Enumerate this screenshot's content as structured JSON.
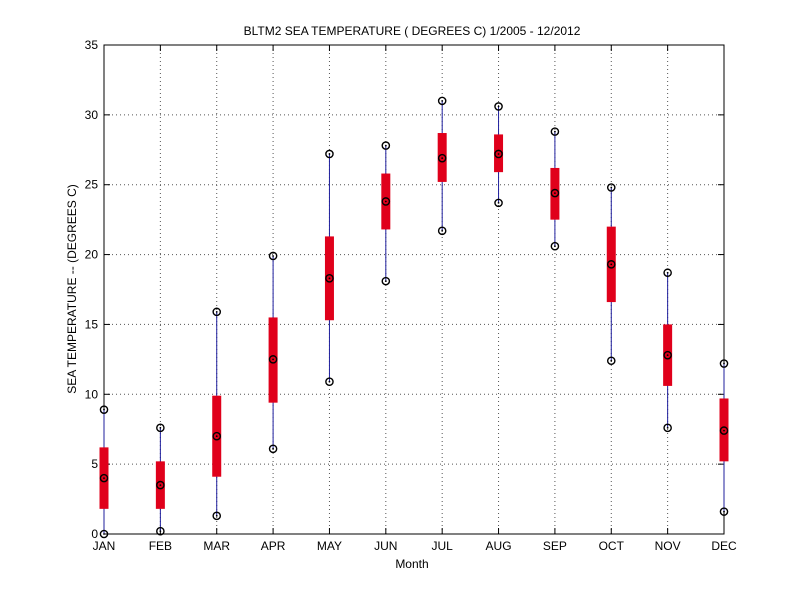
{
  "chart_data": {
    "type": "boxplot",
    "title": "BLTM2  SEA TEMPERATURE ( DEGREES C) 1/2005 - 12/2012",
    "xlabel": "Month",
    "ylabel": "SEA TEMPERATURE -- (DEGREES C)",
    "ylim": [
      0,
      35
    ],
    "yticks": [
      0,
      5,
      10,
      15,
      20,
      25,
      30,
      35
    ],
    "grid": true,
    "categories": [
      "JAN",
      "FEB",
      "MAR",
      "APR",
      "MAY",
      "JUN",
      "JUL",
      "AUG",
      "SEP",
      "OCT",
      "NOV",
      "DEC"
    ],
    "series": [
      {
        "min": [
          0.0,
          0.2,
          1.3,
          6.1,
          10.9,
          18.1,
          21.7,
          23.7,
          20.6,
          12.4,
          7.6,
          1.6
        ],
        "q1": [
          1.8,
          1.8,
          4.1,
          9.4,
          15.3,
          21.8,
          25.2,
          25.9,
          22.5,
          16.6,
          10.6,
          5.2
        ],
        "median": [
          4.0,
          3.5,
          7.0,
          12.5,
          18.3,
          23.8,
          26.9,
          27.2,
          24.4,
          19.3,
          12.8,
          7.4
        ],
        "q3": [
          6.2,
          5.2,
          9.9,
          15.5,
          21.3,
          25.8,
          28.7,
          28.6,
          26.2,
          22.0,
          15.0,
          9.7
        ],
        "max": [
          8.9,
          7.6,
          15.9,
          19.9,
          27.2,
          27.8,
          31.0,
          30.6,
          28.8,
          24.8,
          18.7,
          12.2
        ]
      }
    ],
    "colors": {
      "box": "#e0001b",
      "whisker": "#1f1f9e",
      "marker": "#000000",
      "grid": "#555555",
      "axis": "#000000"
    }
  }
}
